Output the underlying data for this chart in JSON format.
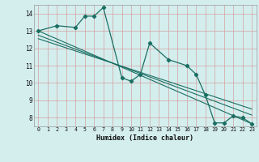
{
  "title": "",
  "xlabel": "Humidex (Indice chaleur)",
  "bg_color": "#d4eeee",
  "grid_color": "#b8d8d8",
  "line_color": "#1a6e62",
  "xlim": [
    -0.5,
    23.5
  ],
  "ylim": [
    7.5,
    14.5
  ],
  "xticks": [
    0,
    1,
    2,
    3,
    4,
    5,
    6,
    7,
    8,
    9,
    10,
    11,
    12,
    13,
    14,
    15,
    16,
    17,
    18,
    19,
    20,
    21,
    22,
    23
  ],
  "yticks": [
    8,
    9,
    10,
    11,
    12,
    13,
    14
  ],
  "curve_x": [
    0,
    2,
    4,
    5,
    6,
    7,
    9,
    10,
    11,
    12,
    14,
    16,
    17,
    18,
    19,
    20,
    21,
    22,
    23
  ],
  "curve_y": [
    13.0,
    13.3,
    13.2,
    13.85,
    13.85,
    14.35,
    10.3,
    10.1,
    10.5,
    12.3,
    11.35,
    11.0,
    10.5,
    9.3,
    7.7,
    7.7,
    8.1,
    8.0,
    7.65
  ],
  "line1_x": [
    0,
    23
  ],
  "line1_y": [
    12.75,
    8.15
  ],
  "line2_x": [
    0,
    23
  ],
  "line2_y": [
    13.0,
    7.65
  ],
  "line3_x": [
    0,
    23
  ],
  "line3_y": [
    12.55,
    8.5
  ]
}
